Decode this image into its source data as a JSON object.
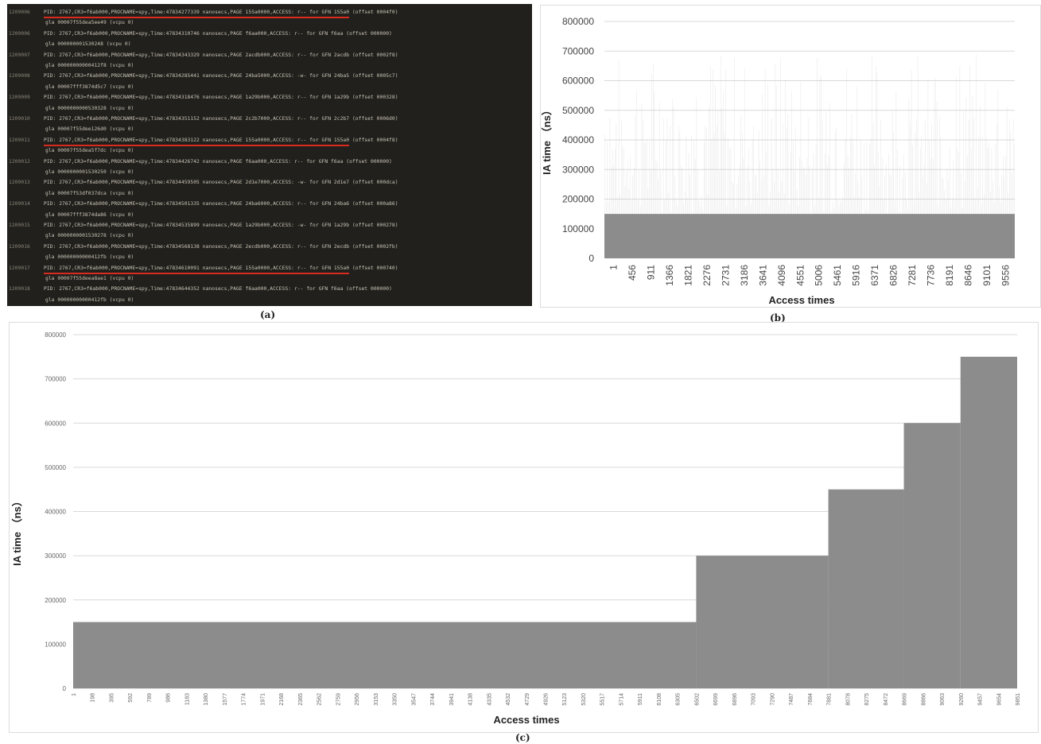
{
  "panel_a": {
    "caption": "(a)",
    "lines": [
      {
        "num": "1209006",
        "text": "PID: 2767,CR3=f6ab000,PROCNAME=spy,Time:47834277339 nanosecs,PAGE 155a0000,ACCESS: r-- for GFN 155a0 (offset 0004f0)",
        "cont": "gla 00007f55dea5ee49 (vcpu 0)",
        "mark": true
      },
      {
        "num": "1209006",
        "text": "PID: 2767,CR3=f6ab000,PROCNAME=spy,Time:47834310746 nanosecs,PAGE f6aa000,ACCESS: r-- for GFN f6aa (offset 000000)",
        "cont": "gla 000000001530248 (vcpu 0)",
        "mark": false
      },
      {
        "num": "1209007",
        "text": "PID: 2767,CR3=f6ab000,PROCNAME=spy,Time:47834343329 nanosecs,PAGE 2acdb000,ACCESS: r-- for GFN 2acdb (offset 0002f8)",
        "cont": "gla 00000000000412f8 (vcpu 0)",
        "mark": false
      },
      {
        "num": "1209008",
        "text": "PID: 2767,CR3=f6ab000,PROCNAME=spy,Time:47834285441 nanosecs,PAGE 24ba5000,ACCESS: -w- for GFN 24ba5 (offset 0005c7)",
        "cont": "gla 00007fff3874d5c7 (vcpu 0)",
        "mark": false
      },
      {
        "num": "1209009",
        "text": "PID: 2767,CR3=f6ab000,PROCNAME=spy,Time:47834318476 nanosecs,PAGE 1a29b000,ACCESS: r-- for GFN 1a29b (offset 000328)",
        "cont": "gla 0000000000530328 (vcpu 0)",
        "mark": false
      },
      {
        "num": "1209010",
        "text": "PID: 2767,CR3=f6ab000,PROCNAME=spy,Time:47834351152 nanosecs,PAGE 2c2b7000,ACCESS: r-- for GFN 2c2b7 (offset 0006d0)",
        "cont": "gla 00007f55dee126d0 (vcpu 0)",
        "mark": false
      },
      {
        "num": "1209011",
        "text": "PID: 2767,CR3=f6ab000,PROCNAME=spy,Time:47834383122 nanosecs,PAGE 155a0000,ACCESS: r-- for GFN 155a0 (offset 0004f8)",
        "cont": "gla 00007f55dea5f7dc (vcpu 0)",
        "mark": true
      },
      {
        "num": "1209012",
        "text": "PID: 2767,CR3=f6ab000,PROCNAME=spy,Time:47834426742 nanosecs,PAGE f6aa000,ACCESS: r-- for GFN f6aa (offset 000000)",
        "cont": "gla 0000000001530250 (vcpu 0)",
        "mark": false
      },
      {
        "num": "1209013",
        "text": "PID: 2767,CR3=f6ab000,PROCNAME=spy,Time:47834459505 nanosecs,PAGE 2d1e7000,ACCESS: -w- for GFN 2d1e7 (offset 000dca)",
        "cont": "gla 00007f53df037dca (vcpu 0)",
        "mark": false
      },
      {
        "num": "1209014",
        "text": "PID: 2767,CR3=f6ab000,PROCNAME=spy,Time:47834501335 nanosecs,PAGE 24ba6000,ACCESS: r-- for GFN 24ba6 (offset 000a86)",
        "cont": "gla 00007fff3874da86 (vcpu 0)",
        "mark": false
      },
      {
        "num": "1209015",
        "text": "PID: 2767,CR3=f6ab000,PROCNAME=spy,Time:47834535899 nanosecs,PAGE 1a29b000,ACCESS: -w- for GFN 1a29b (offset 000278)",
        "cont": "gla 0000000001530278 (vcpu 0)",
        "mark": false
      },
      {
        "num": "1209016",
        "text": "PID: 2767,CR3=f6ab000,PROCNAME=spy,Time:47834568138 nanosecs,PAGE 2ecdb000,ACCESS: r-- for GFN 2ecdb (offset 0002fb)",
        "cont": "gla 00000000000412fb (vcpu 0)",
        "mark": false
      },
      {
        "num": "1209017",
        "text": "PID: 2767,CR3=f6ab000,PROCNAME=spy,Time:47834610091 nanosecs,PAGE 155a0000,ACCESS: r-- for GFN 155a0 (offset 000740)",
        "cont": "gla 00007f55deea8ae1 (vcpu 0)",
        "mark": true
      },
      {
        "num": "1209018",
        "text": "PID: 2767,CR3=f6ab000,PROCNAME=spy,Time:47834644352 nanosecs,PAGE f6aa000,ACCESS: r-- for GFN f6aa (offset 000000)",
        "cont": "gla 00000000000412fb (vcpu 0)",
        "mark": false
      }
    ]
  },
  "chart_data": [
    {
      "type": "bar",
      "caption": "(b)",
      "xlabel": "Access times",
      "ylabel": "IA time （ns）",
      "ylim": [
        0,
        800000
      ],
      "yticks": [
        0,
        100000,
        200000,
        300000,
        400000,
        500000,
        600000,
        700000,
        800000
      ],
      "categories": [
        "1",
        "456",
        "911",
        "1366",
        "1821",
        "2276",
        "2731",
        "3186",
        "3641",
        "4096",
        "4551",
        "5006",
        "5461",
        "5916",
        "6371",
        "6826",
        "7281",
        "7736",
        "8191",
        "8646",
        "9101",
        "9556"
      ],
      "baseline": 150000,
      "max_spike": 700000,
      "grid": true
    },
    {
      "type": "bar",
      "caption": "(c)",
      "xlabel": "Access times",
      "ylabel": "IA time （ns）",
      "ylim": [
        0,
        800000
      ],
      "yticks": [
        0,
        100000,
        200000,
        300000,
        400000,
        500000,
        600000,
        700000,
        800000
      ],
      "categories": [
        "1",
        "198",
        "395",
        "592",
        "789",
        "986",
        "1183",
        "1380",
        "1577",
        "1774",
        "1971",
        "2168",
        "2365",
        "2562",
        "2759",
        "2956",
        "3153",
        "3350",
        "3547",
        "3744",
        "3941",
        "4138",
        "4335",
        "4532",
        "4729",
        "4926",
        "5123",
        "5320",
        "5517",
        "5714",
        "5911",
        "6108",
        "6305",
        "6502",
        "6699",
        "6896",
        "7093",
        "7290",
        "7487",
        "7684",
        "7881",
        "8078",
        "8275",
        "8472",
        "8669",
        "8866",
        "9063",
        "9260",
        "9457",
        "9654",
        "9851"
      ],
      "steps": [
        {
          "from": "1",
          "to": "6502",
          "value": 150000
        },
        {
          "from": "6502",
          "to": "7881",
          "value": 300000
        },
        {
          "from": "7881",
          "to": "8669",
          "value": 450000
        },
        {
          "from": "8669",
          "to": "9260",
          "value": 600000
        },
        {
          "from": "9260",
          "to": "9851",
          "value": 750000
        }
      ],
      "grid": true
    }
  ],
  "colors": {
    "terminal_bg": "#22201c",
    "highlight": "#d82b20",
    "bar": "#8c8c8c",
    "grid": "#d9d9d9"
  }
}
